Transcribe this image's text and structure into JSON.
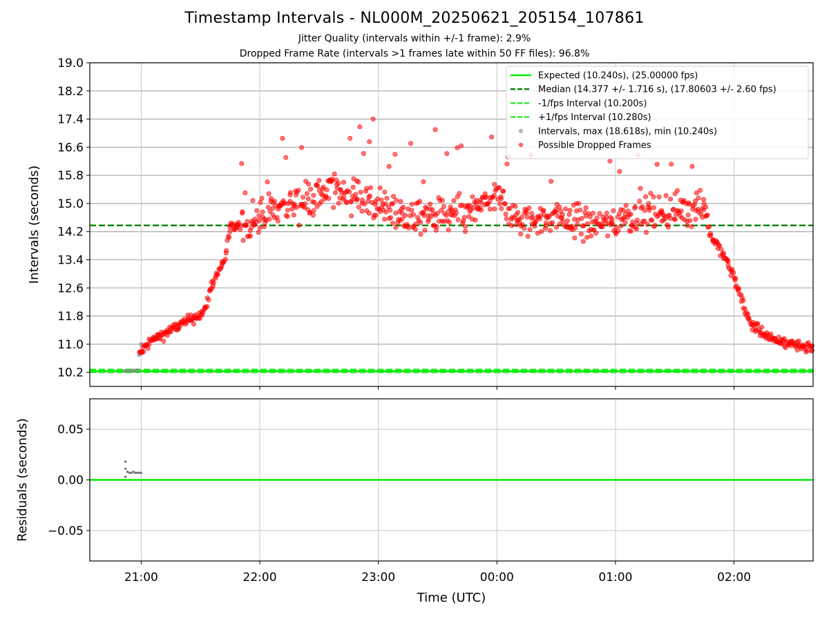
{
  "title": "Timestamp Intervals - NL000M_20250621_205154_107861",
  "subtitle_1": "Jitter Quality (intervals within +/-1 frame): 2.9%",
  "subtitle_2": "Dropped Frame Rate (intervals >1 frames late within 50 FF files): 96.8%",
  "chart_data": [
    {
      "type": "scatter",
      "ylabel": "Intervals (seconds)",
      "ylim": [
        9.8,
        19.0
      ],
      "yticks": [
        "10.2",
        "11.0",
        "11.8",
        "12.6",
        "13.4",
        "14.2",
        "15.0",
        "15.8",
        "16.6",
        "17.4",
        "18.2",
        "19.0"
      ],
      "xticks": [
        "21:00",
        "22:00",
        "23:00",
        "00:00",
        "01:00",
        "02:00"
      ],
      "x_range": [
        "20:34",
        "02:40"
      ],
      "grid": true,
      "legend_position": "top-right",
      "lines": [
        {
          "name": "Expected (10.240s), (25.00000 fps)",
          "y": 10.24,
          "style": "solid",
          "color": "#00ee00"
        },
        {
          "name": "Median (14.377 +/- 1.716 s), (17.80603 +/- 2.60 fps)",
          "y": 14.377,
          "style": "dashed",
          "color": "#008000"
        },
        {
          "name": "-1/fps Interval (10.200s)",
          "y": 10.2,
          "style": "dashed",
          "color": "#22ee22"
        },
        {
          "name": "+1/fps Interval (10.280s)",
          "y": 10.28,
          "style": "dashed",
          "color": "#22ee22"
        }
      ],
      "series": [
        {
          "name": "Intervals, max (18.618s), min (10.240s)",
          "color": "#888888",
          "points": [
            {
              "x": "20:52",
              "y": 10.24
            },
            {
              "x": "20:54",
              "y": 10.24
            },
            {
              "x": "20:56",
              "y": 10.25
            },
            {
              "x": "20:58",
              "y": 10.25
            },
            {
              "x": "20:59",
              "y": 10.7
            },
            {
              "x": "21:00",
              "y": 11.0
            }
          ]
        },
        {
          "name": "Possible Dropped Frames",
          "color": "#ff0000",
          "trend_points": [
            {
              "x": "20:59",
              "y": 10.7
            },
            {
              "x": "21:05",
              "y": 11.1
            },
            {
              "x": "21:15",
              "y": 11.4
            },
            {
              "x": "21:25",
              "y": 11.7
            },
            {
              "x": "21:32",
              "y": 11.9
            },
            {
              "x": "21:35",
              "y": 12.6
            },
            {
              "x": "21:42",
              "y": 13.4
            },
            {
              "x": "21:45",
              "y": 14.3
            },
            {
              "x": "21:55",
              "y": 14.4
            },
            {
              "x": "22:05",
              "y": 14.8
            },
            {
              "x": "22:20",
              "y": 15.1
            },
            {
              "x": "22:40",
              "y": 15.4
            },
            {
              "x": "23:00",
              "y": 15.0
            },
            {
              "x": "23:15",
              "y": 14.6
            },
            {
              "x": "23:45",
              "y": 14.7
            },
            {
              "x": "00:00",
              "y": 15.2
            },
            {
              "x": "00:10",
              "y": 14.5
            },
            {
              "x": "00:30",
              "y": 14.6
            },
            {
              "x": "00:55",
              "y": 14.4
            },
            {
              "x": "01:10",
              "y": 14.7
            },
            {
              "x": "01:30",
              "y": 14.8
            },
            {
              "x": "01:45",
              "y": 15.0
            },
            {
              "x": "01:48",
              "y": 14.1
            },
            {
              "x": "01:55",
              "y": 13.5
            },
            {
              "x": "02:00",
              "y": 12.9
            },
            {
              "x": "02:08",
              "y": 11.6
            },
            {
              "x": "02:20",
              "y": 11.1
            },
            {
              "x": "02:40",
              "y": 10.9
            }
          ],
          "max_y": 18.618
        }
      ]
    },
    {
      "type": "scatter",
      "ylabel": "Residuals (seconds)",
      "xlabel": "Time (UTC)",
      "ylim": [
        -0.08,
        0.08
      ],
      "yticks": [
        "−0.05",
        "0.00",
        "0.05"
      ],
      "xticks": [
        "21:00",
        "22:00",
        "23:00",
        "00:00",
        "01:00",
        "02:00"
      ],
      "grid": true,
      "zero_line_color": "#00ee00",
      "series": [
        {
          "color": "#777777",
          "points": [
            {
              "x": "20:52",
              "y": 0.018
            },
            {
              "x": "20:52",
              "y": 0.011
            },
            {
              "x": "20:52",
              "y": 0.003
            },
            {
              "x": "20:53",
              "y": 0.008
            },
            {
              "x": "20:54",
              "y": 0.007
            },
            {
              "x": "20:55",
              "y": 0.007
            },
            {
              "x": "20:56",
              "y": 0.008
            },
            {
              "x": "20:57",
              "y": 0.007
            },
            {
              "x": "20:58",
              "y": 0.007
            },
            {
              "x": "20:59",
              "y": 0.007
            },
            {
              "x": "21:00",
              "y": 0.007
            }
          ]
        }
      ]
    }
  ]
}
